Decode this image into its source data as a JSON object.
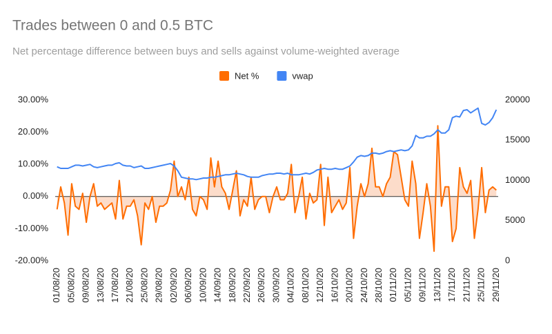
{
  "chart_data": {
    "type": "line",
    "title": "Trades between 0 and 0.5 BTC",
    "subtitle": "Net percentage difference between buys and sells against volume-weighted average",
    "categories": [
      "01/08/20",
      null,
      null,
      null,
      "05/08/20",
      null,
      null,
      null,
      "09/08/20",
      null,
      null,
      null,
      "13/08/20",
      null,
      null,
      null,
      "17/08/20",
      null,
      null,
      null,
      "21/08/20",
      null,
      null,
      null,
      "25/08/20",
      null,
      null,
      null,
      "29/08/20",
      null,
      null,
      null,
      "02/09/20",
      null,
      null,
      null,
      "06/09/20",
      null,
      null,
      null,
      "10/09/20",
      null,
      null,
      null,
      "14/09/20",
      null,
      null,
      null,
      "18/09/20",
      null,
      null,
      null,
      "22/09/20",
      null,
      null,
      null,
      "26/09/20",
      null,
      null,
      null,
      "30/09/20",
      null,
      null,
      null,
      "04/10/20",
      null,
      null,
      null,
      "08/10/20",
      null,
      null,
      null,
      "12/10/20",
      null,
      null,
      null,
      "16/10/20",
      null,
      null,
      null,
      "20/10/20",
      null,
      null,
      null,
      "24/10/20",
      null,
      null,
      null,
      "28/10/20",
      null,
      null,
      null,
      "01/11/20",
      null,
      null,
      null,
      "05/11/20",
      null,
      null,
      null,
      "09/11/20",
      null,
      null,
      null,
      "13/11/20",
      null,
      null,
      null,
      "17/11/20",
      null,
      null,
      null,
      "21/11/20",
      null,
      null,
      null,
      "25/11/20",
      null,
      null,
      null,
      "29/11/20"
    ],
    "series": [
      {
        "name": "Net %",
        "color": "#ff6d01",
        "fill": "#fbd3bd",
        "values": [
          -4,
          3,
          -2,
          -12,
          4,
          -3,
          -4,
          1,
          -8,
          0,
          4,
          -3,
          -2,
          -4,
          -3,
          -2,
          -7,
          5,
          -7,
          -3,
          -3,
          -1,
          -6,
          -15,
          -2,
          -4,
          0,
          -8,
          -3,
          -3,
          -2,
          2,
          11,
          0,
          3,
          -1,
          6,
          -4,
          -6,
          0,
          -1,
          -4,
          12,
          3,
          11,
          3,
          1,
          -4,
          2,
          8,
          -6,
          -1,
          -3,
          6,
          -4,
          -1,
          0,
          0,
          -5,
          0,
          3,
          -1,
          -1,
          1,
          10,
          -5,
          0,
          6,
          -7,
          1,
          -2,
          -1,
          10,
          -9,
          6,
          -5,
          -3,
          -1,
          -4,
          -2,
          9,
          -13,
          -3,
          4,
          0,
          4,
          15,
          3,
          3,
          0,
          4,
          6,
          14,
          13,
          6,
          -1,
          -3,
          11,
          4,
          -13,
          -5,
          4,
          -3,
          -17,
          22,
          -3,
          3,
          3,
          -14,
          -10,
          9,
          3,
          1,
          5,
          -13,
          -4,
          9,
          -5,
          2,
          3,
          2
        ]
      },
      {
        "name": "vwap",
        "color": "#4285f4",
        "axis": "y2",
        "values": [
          11700,
          11500,
          11500,
          11500,
          11700,
          11900,
          11900,
          11800,
          11900,
          12000,
          11700,
          11600,
          11700,
          11800,
          11900,
          11900,
          12100,
          12200,
          11900,
          11800,
          11800,
          11600,
          11700,
          11800,
          11500,
          11500,
          11600,
          11700,
          11800,
          11900,
          12000,
          12100,
          11800,
          11200,
          10400,
          10300,
          10200,
          10200,
          10100,
          10200,
          10300,
          10300,
          10400,
          10400,
          10500,
          10600,
          10700,
          10700,
          10800,
          10900,
          10800,
          10700,
          10500,
          10400,
          10400,
          10400,
          10600,
          10700,
          10800,
          10800,
          10900,
          10900,
          10800,
          10900,
          10700,
          10700,
          10700,
          10800,
          10900,
          10800,
          11000,
          11300,
          11400,
          11500,
          11400,
          11400,
          11500,
          11400,
          11400,
          11600,
          11800,
          12300,
          12900,
          13100,
          13000,
          13100,
          13400,
          13400,
          13300,
          13400,
          13600,
          13700,
          13600,
          13700,
          13800,
          13700,
          13800,
          14300,
          15600,
          15300,
          15300,
          15500,
          15500,
          15800,
          16300,
          15900,
          15900,
          16300,
          17800,
          18000,
          17900,
          18700,
          18800,
          18400,
          18700,
          19000,
          17100,
          16900,
          17200,
          17800,
          18800
        ]
      }
    ],
    "ylim": [
      -20,
      30
    ],
    "yticks": [
      {
        "value": -20,
        "label": "-20.00%"
      },
      {
        "value": -10,
        "label": "-10.00%"
      },
      {
        "value": 0,
        "label": "0.00%"
      },
      {
        "value": 10,
        "label": "10.00%"
      },
      {
        "value": 20,
        "label": "20.00%"
      },
      {
        "value": 30,
        "label": "30.00%"
      }
    ],
    "y2lim": [
      0,
      20000
    ],
    "y2ticks": [
      0,
      5000,
      10000,
      15000,
      20000
    ],
    "legend": "top"
  }
}
